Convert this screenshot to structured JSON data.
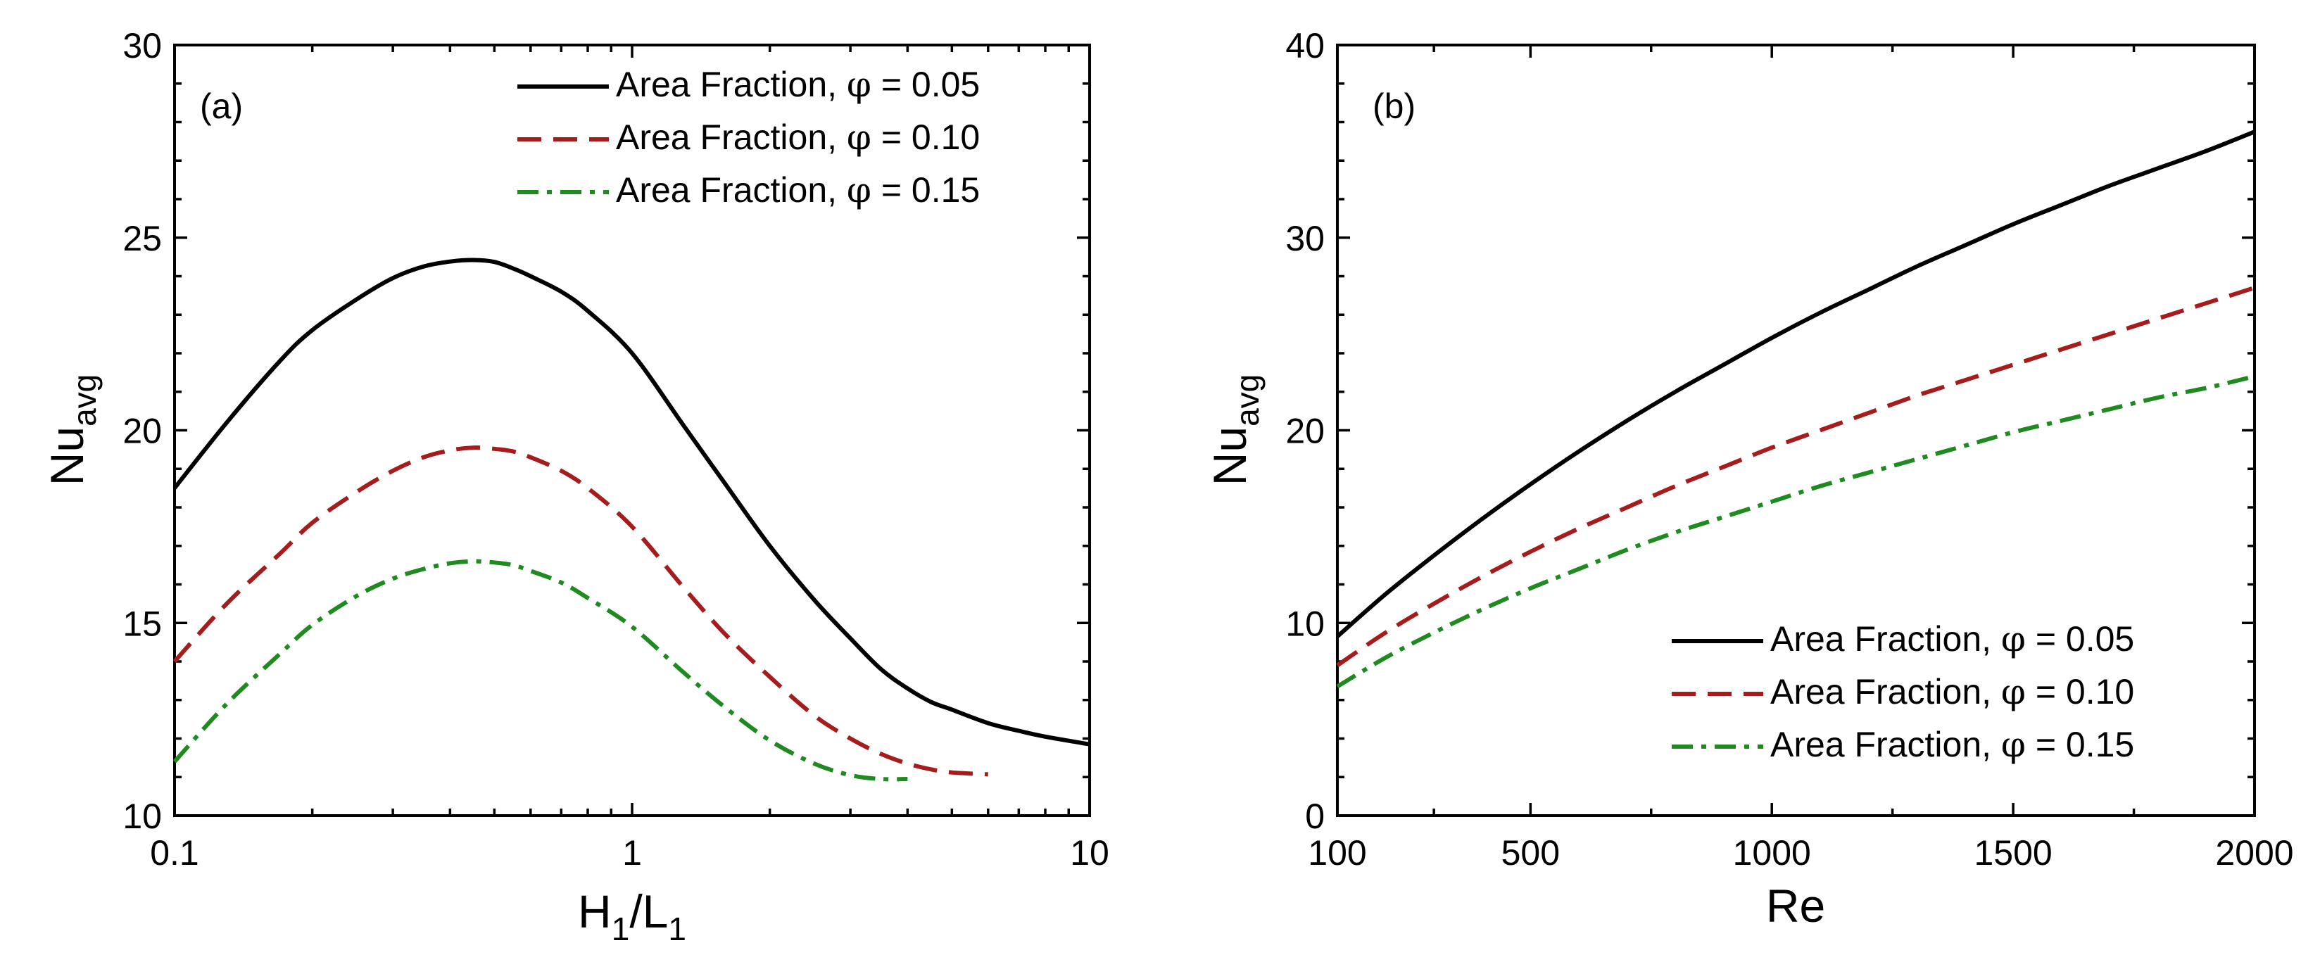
{
  "chart_data": [
    {
      "type": "line",
      "panel_label": "(a)",
      "xscale": "log",
      "xlim": [
        0.1,
        10
      ],
      "ylim": [
        10,
        30
      ],
      "xlabel": {
        "main": "H",
        "sub1": "1",
        "slash": "/L",
        "sub2": "1"
      },
      "ylabel": {
        "main": "Nu",
        "sub": "avg"
      },
      "xticks": [
        0.1,
        1,
        10
      ],
      "xtick_labels": [
        "0.1",
        "1",
        "10"
      ],
      "yticks": [
        10,
        15,
        20,
        25,
        30
      ],
      "ytick_labels": [
        "10",
        "15",
        "20",
        "25",
        "30"
      ],
      "legend_position": "top-right",
      "series": [
        {
          "name": "Area Fraction, φ = 0.05",
          "label_main": "Area Fraction, ",
          "phi": "φ",
          "label_value": " = 0.05",
          "color": "#000000",
          "style": "solid",
          "x": [
            0.1,
            0.13,
            0.17,
            0.2,
            0.25,
            0.3,
            0.35,
            0.4,
            0.45,
            0.5,
            0.55,
            0.6,
            0.7,
            0.8,
            1.0,
            1.3,
            1.6,
            2.0,
            2.5,
            3.0,
            3.5,
            4.0,
            4.5,
            5.0,
            6.0,
            7.0,
            8.0,
            10.0
          ],
          "y": [
            18.5,
            20.2,
            21.8,
            22.6,
            23.4,
            23.95,
            24.25,
            24.38,
            24.42,
            24.37,
            24.2,
            24.0,
            23.6,
            23.1,
            22.0,
            20.1,
            18.6,
            17.0,
            15.6,
            14.6,
            13.8,
            13.3,
            12.95,
            12.75,
            12.4,
            12.2,
            12.05,
            11.85
          ]
        },
        {
          "name": "Area Fraction, φ = 0.10",
          "label_main": "Area Fraction, ",
          "phi": "φ",
          "label_value": " = 0.10",
          "color": "#a61b1b",
          "style": "dashed",
          "x": [
            0.1,
            0.13,
            0.17,
            0.2,
            0.25,
            0.3,
            0.35,
            0.4,
            0.45,
            0.5,
            0.55,
            0.6,
            0.7,
            0.8,
            1.0,
            1.3,
            1.6,
            2.0,
            2.5,
            3.0,
            3.5,
            4.0,
            4.5,
            5.0,
            6.0
          ],
          "y": [
            14.0,
            15.5,
            16.8,
            17.6,
            18.4,
            18.95,
            19.3,
            19.48,
            19.55,
            19.52,
            19.45,
            19.3,
            18.95,
            18.5,
            17.5,
            15.9,
            14.7,
            13.6,
            12.6,
            12.0,
            11.6,
            11.35,
            11.2,
            11.12,
            11.07
          ]
        },
        {
          "name": "Area Fraction, φ = 0.15",
          "label_main": "Area Fraction, ",
          "phi": "φ",
          "label_value": " = 0.15",
          "color": "#1f8a1f",
          "style": "dashdot",
          "x": [
            0.1,
            0.13,
            0.17,
            0.2,
            0.25,
            0.3,
            0.35,
            0.4,
            0.45,
            0.5,
            0.55,
            0.6,
            0.7,
            0.8,
            1.0,
            1.3,
            1.6,
            2.0,
            2.5,
            3.0,
            3.5,
            4.0
          ],
          "y": [
            11.4,
            12.9,
            14.2,
            14.95,
            15.7,
            16.15,
            16.4,
            16.55,
            16.6,
            16.57,
            16.5,
            16.35,
            16.05,
            15.65,
            14.9,
            13.7,
            12.8,
            11.95,
            11.35,
            11.05,
            10.95,
            10.95
          ]
        }
      ]
    },
    {
      "type": "line",
      "panel_label": "(b)",
      "xscale": "linear",
      "xlim": [
        100,
        2000
      ],
      "ylim": [
        0,
        40
      ],
      "xlabel": {
        "main": "Re"
      },
      "ylabel": {
        "main": "Nu",
        "sub": "avg"
      },
      "xticks": [
        100,
        500,
        1000,
        1500,
        2000
      ],
      "xtick_labels": [
        "100",
        "500",
        "1000",
        "1500",
        "2000"
      ],
      "yticks": [
        0,
        10,
        20,
        30,
        40
      ],
      "ytick_labels": [
        "0",
        "10",
        "20",
        "30",
        "40"
      ],
      "legend_position": "bottom-right",
      "series": [
        {
          "name": "Area Fraction, φ = 0.05",
          "label_main": "Area Fraction, ",
          "phi": "φ",
          "label_value": " = 0.05",
          "color": "#000000",
          "style": "solid",
          "x": [
            100,
            200,
            300,
            400,
            500,
            600,
            700,
            800,
            900,
            1000,
            1100,
            1200,
            1300,
            1400,
            1500,
            1600,
            1700,
            1800,
            1900,
            2000
          ],
          "y": [
            9.3,
            11.5,
            13.5,
            15.4,
            17.2,
            18.9,
            20.5,
            22.0,
            23.4,
            24.8,
            26.1,
            27.3,
            28.5,
            29.6,
            30.7,
            31.7,
            32.7,
            33.6,
            34.5,
            35.5
          ]
        },
        {
          "name": "Area Fraction, φ = 0.10",
          "label_main": "Area Fraction, ",
          "phi": "φ",
          "label_value": " = 0.10",
          "color": "#a61b1b",
          "style": "dashed",
          "x": [
            100,
            200,
            300,
            400,
            500,
            600,
            700,
            800,
            900,
            1000,
            1100,
            1200,
            1300,
            1400,
            1500,
            1600,
            1700,
            1800,
            1900,
            2000
          ],
          "y": [
            7.8,
            9.5,
            11.0,
            12.4,
            13.7,
            14.9,
            16.0,
            17.1,
            18.1,
            19.1,
            20.0,
            20.9,
            21.8,
            22.6,
            23.4,
            24.2,
            25.0,
            25.8,
            26.6,
            27.4
          ]
        },
        {
          "name": "Area Fraction, φ = 0.15",
          "label_main": "Area Fraction, ",
          "phi": "φ",
          "label_value": " = 0.15",
          "color": "#1f8a1f",
          "style": "dashdot",
          "x": [
            100,
            200,
            300,
            400,
            500,
            600,
            700,
            800,
            900,
            1000,
            1100,
            1200,
            1300,
            1400,
            1500,
            1600,
            1700,
            1800,
            1900,
            2000
          ],
          "y": [
            6.7,
            8.2,
            9.5,
            10.7,
            11.8,
            12.8,
            13.8,
            14.7,
            15.5,
            16.3,
            17.1,
            17.8,
            18.5,
            19.2,
            19.9,
            20.5,
            21.1,
            21.7,
            22.2,
            22.8
          ]
        }
      ]
    }
  ]
}
